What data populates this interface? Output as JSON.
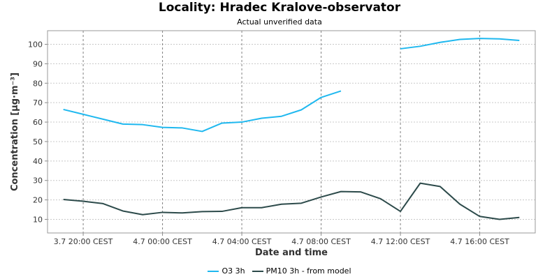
{
  "chart_data": {
    "type": "line",
    "title": "Locality: Hradec Kralove-observator",
    "subtitle": "Actual unverified data",
    "xlabel": "Date and time",
    "ylabel": "Concentration [µg·m⁻³]",
    "ylim": [
      3,
      107
    ],
    "yticks": [
      10,
      20,
      30,
      40,
      50,
      60,
      70,
      80,
      90,
      100
    ],
    "xlim": [
      18.2,
      42.8
    ],
    "xticks": [
      {
        "x": 20,
        "label": "3.7 20:00 CEST"
      },
      {
        "x": 24,
        "label": "4.7 00:00 CEST"
      },
      {
        "x": 28,
        "label": "4.7 04:00 CEST"
      },
      {
        "x": 32,
        "label": "4.7 08:00 CEST"
      },
      {
        "x": 36,
        "label": "4.7 12:00 CEST"
      },
      {
        "x": 40,
        "label": "4.7 16:00 CEST"
      }
    ],
    "grid": true,
    "legend_position": "bottom",
    "series": [
      {
        "name": "O3 3h",
        "color": "#1fb8ef",
        "x": [
          19,
          20,
          21,
          22,
          23,
          24,
          25,
          26,
          27,
          28,
          29,
          30,
          31,
          32,
          33,
          34,
          35,
          36,
          37,
          38,
          39,
          40,
          41,
          42
        ],
        "values": [
          66.5,
          64,
          61.5,
          59,
          58.7,
          57.3,
          57,
          55.2,
          59.5,
          60,
          62,
          63,
          66.3,
          72.7,
          76,
          null,
          null,
          97.7,
          99,
          101,
          102.5,
          103,
          102.8,
          102
        ]
      },
      {
        "name": "PM10 3h - from model",
        "color": "#2c4a4a",
        "x": [
          19,
          20,
          21,
          22,
          23,
          24,
          25,
          26,
          27,
          28,
          29,
          30,
          31,
          32,
          33,
          34,
          35,
          36,
          37,
          38,
          39,
          40,
          41,
          42
        ],
        "values": [
          20.2,
          19.3,
          18.1,
          14.3,
          12.4,
          13.6,
          13.3,
          14,
          14.1,
          16,
          16,
          17.8,
          18.3,
          21.5,
          24.3,
          24.1,
          20.6,
          14.1,
          28.6,
          26.9,
          17.8,
          11.5,
          10,
          11
        ]
      }
    ]
  }
}
